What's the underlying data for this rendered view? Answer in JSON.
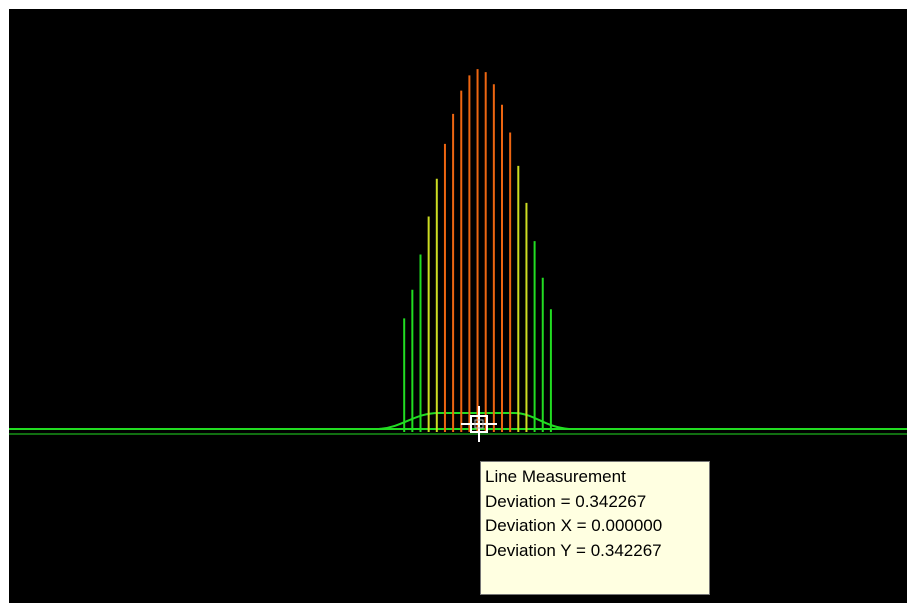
{
  "viewport": {
    "background": "#000000",
    "trace_color": "#22dd22",
    "trace_color_mid": "#ccdd22",
    "trace_color_high": "#ee6611"
  },
  "cursor": {
    "icon": "crosshair-icon"
  },
  "tooltip": {
    "title": "Line Measurement",
    "deviation": "Deviation = 0.342267",
    "deviation_x": "Deviation X = 0.000000",
    "deviation_y": "Deviation Y = 0.342267",
    "background": "#ffffe1"
  }
}
